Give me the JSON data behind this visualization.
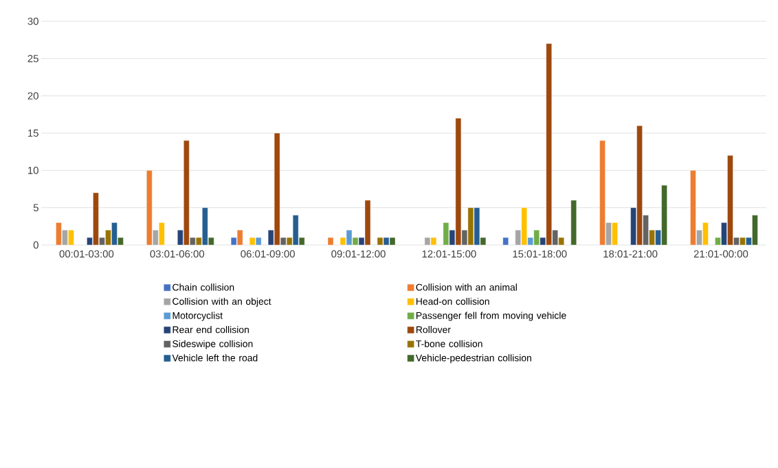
{
  "chart_data": {
    "type": "bar",
    "categories": [
      "00:01-03:00",
      "03:01-06:00",
      "06:01-09:00",
      "09:01-12:00",
      "12:01-15:00",
      "15:01-18:00",
      "18:01-21:00",
      "21:01-00:00"
    ],
    "series": [
      {
        "name": "Chain collision",
        "color": "#4472c4",
        "values": [
          null,
          null,
          1,
          null,
          null,
          1,
          null,
          null
        ]
      },
      {
        "name": "Collision with an animal",
        "color": "#ed7d31",
        "values": [
          3,
          10,
          2,
          1,
          null,
          null,
          14,
          10
        ]
      },
      {
        "name": "Collision with an object",
        "color": "#a5a5a5",
        "values": [
          2,
          2,
          null,
          null,
          1,
          2,
          3,
          2
        ]
      },
      {
        "name": "Head-on collision",
        "color": "#ffc000",
        "values": [
          2,
          3,
          1,
          1,
          1,
          5,
          3,
          3
        ]
      },
      {
        "name": "Motorcyclist",
        "color": "#5b9bd5",
        "values": [
          null,
          null,
          1,
          2,
          null,
          1,
          null,
          null
        ]
      },
      {
        "name": "Passenger fell from moving vehicle",
        "color": "#70ad47",
        "values": [
          null,
          null,
          null,
          1,
          3,
          2,
          null,
          1
        ]
      },
      {
        "name": "Rear end collision",
        "color": "#264478",
        "values": [
          1,
          2,
          2,
          1,
          2,
          1,
          5,
          3
        ]
      },
      {
        "name": "Rollover",
        "color": "#9e480e",
        "values": [
          7,
          14,
          15,
          6,
          17,
          27,
          16,
          12
        ]
      },
      {
        "name": "Sideswipe collision",
        "color": "#636363",
        "values": [
          1,
          1,
          1,
          null,
          2,
          2,
          4,
          1
        ]
      },
      {
        "name": "T-bone collision",
        "color": "#997300",
        "values": [
          2,
          1,
          1,
          1,
          5,
          1,
          2,
          1
        ]
      },
      {
        "name": "Vehicle left the road",
        "color": "#255e91",
        "values": [
          3,
          5,
          4,
          1,
          5,
          null,
          2,
          1
        ]
      },
      {
        "name": "Vehicle-pedestrian collision",
        "color": "#43682b",
        "values": [
          1,
          1,
          1,
          1,
          1,
          6,
          8,
          4
        ]
      }
    ],
    "ylim": [
      0,
      30
    ],
    "yticks": [
      0,
      5,
      10,
      15,
      20,
      25,
      30
    ],
    "grid": "y",
    "legend": "bottom"
  }
}
